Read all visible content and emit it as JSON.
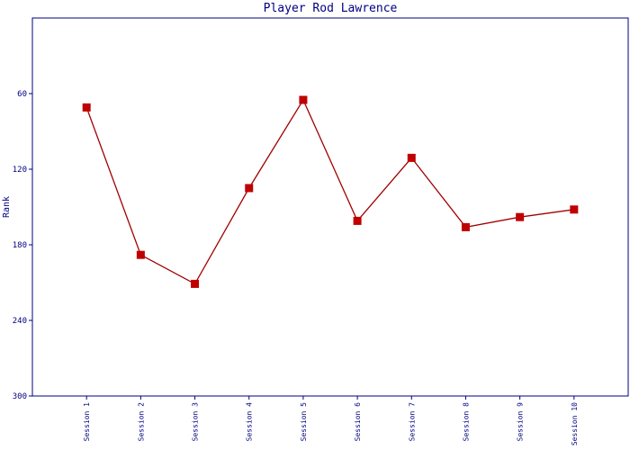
{
  "chart_data": {
    "type": "line",
    "title": "Player Rod Lawrence",
    "y_label": "Rank",
    "categories": [
      "Session 1",
      "Session 2",
      "Session 3",
      "Session 4",
      "Session 5",
      "Session 6",
      "Session 7",
      "Session 8",
      "Session 9",
      "Session 10"
    ],
    "series": [
      {
        "name": "Rank",
        "color": "#a00000",
        "marker_color": "#c00000",
        "values": [
          71,
          188,
          211,
          135,
          65,
          161,
          111,
          166,
          158,
          152
        ]
      }
    ],
    "ylim": [
      300,
      0
    ],
    "yticks": [
      60,
      120,
      180,
      240,
      300
    ]
  }
}
